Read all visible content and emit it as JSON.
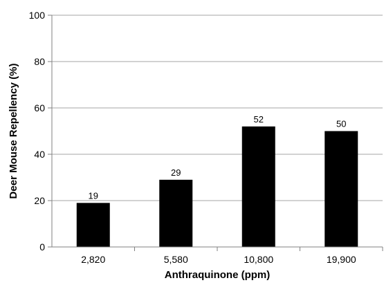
{
  "chart_data": {
    "type": "bar",
    "title": "",
    "xlabel": "Anthraquinone (ppm)",
    "ylabel": "Deer Mouse Repellency (%)",
    "categories": [
      "2,820",
      "5,580",
      "10,800",
      "19,900"
    ],
    "values": [
      19,
      29,
      52,
      50
    ],
    "data_labels": [
      "19",
      "29",
      "52",
      "50"
    ],
    "ylim": [
      0,
      100
    ],
    "yticks": [
      0,
      20,
      40,
      60,
      80,
      100
    ],
    "ytick_labels": [
      "0",
      "20",
      "40",
      "60",
      "80",
      "100"
    ],
    "grid": true,
    "legend": "none",
    "colors": {
      "bar": "#000000",
      "grid": "#a6a6a6",
      "axis": "#808080"
    }
  }
}
